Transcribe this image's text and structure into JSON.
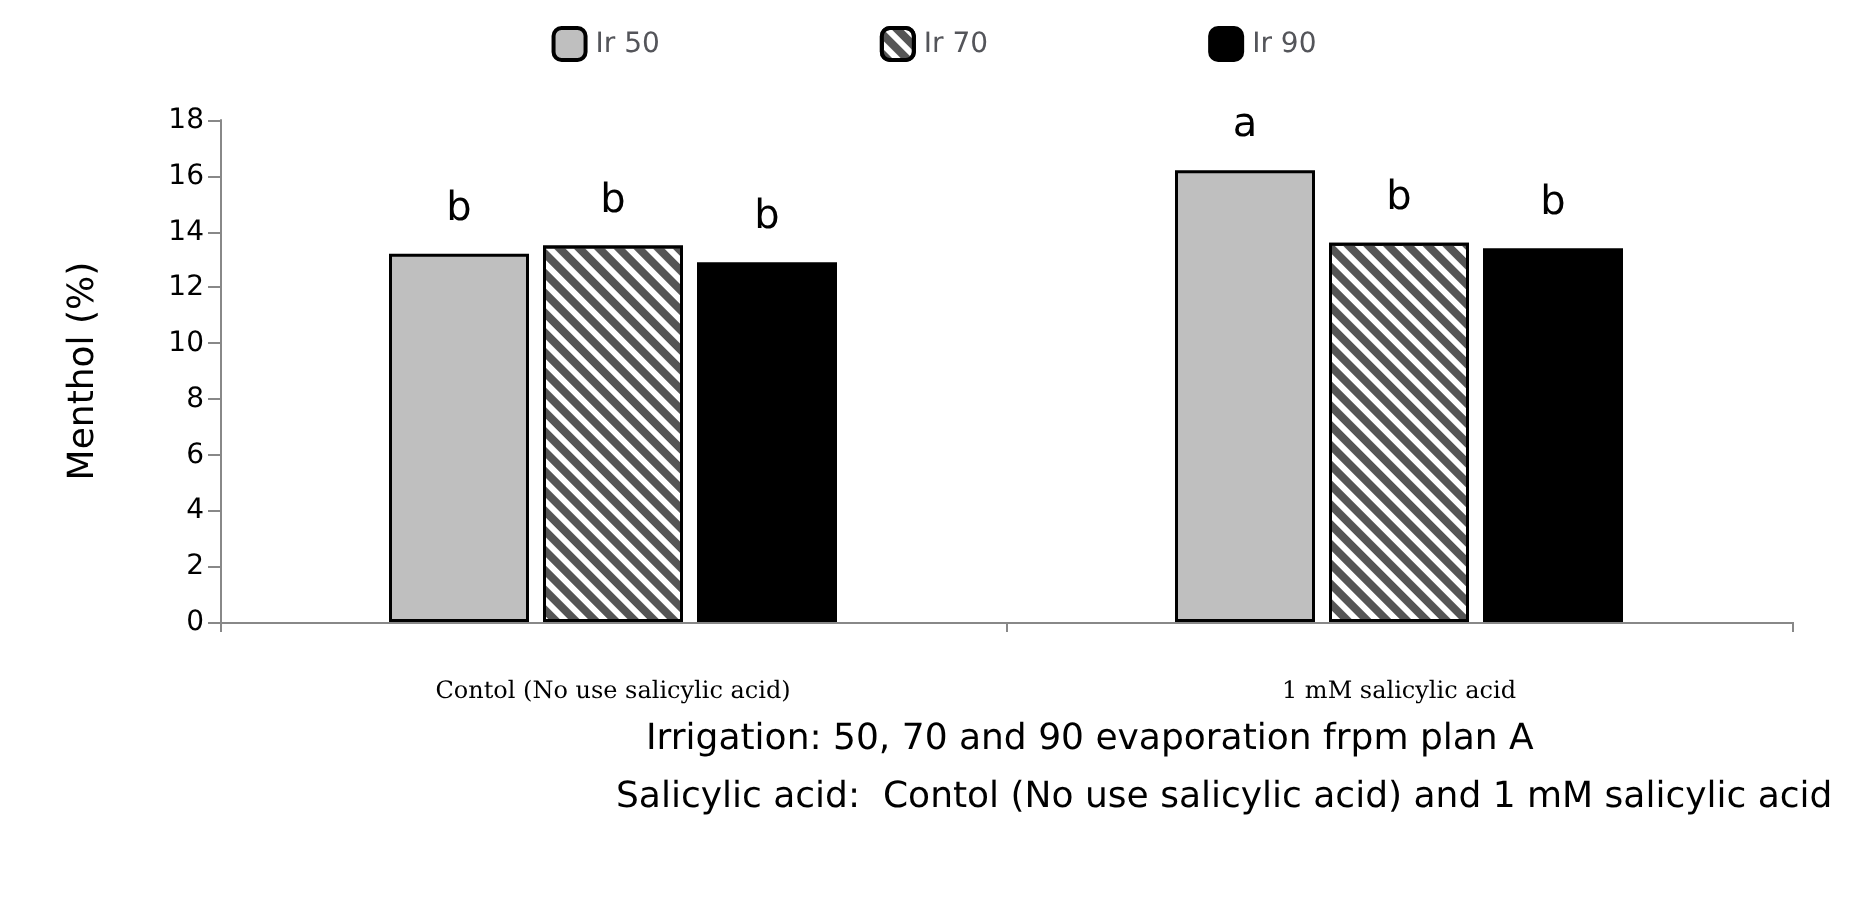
{
  "chart_data": {
    "type": "bar",
    "ylabel": "Menthol (%)",
    "categories": [
      "Contol (No use salicylic acid)",
      "1 mM salicylic acid"
    ],
    "series": [
      {
        "name": "Ir 50",
        "color": "#bfbfbf",
        "values": [
          13.2,
          16.2
        ],
        "value_labels": [
          "b",
          "a"
        ]
      },
      {
        "name": "Ir 70",
        "color": "#ffffff",
        "values": [
          13.5,
          13.6
        ],
        "value_labels": [
          "b",
          "b"
        ]
      },
      {
        "name": "Ir 90",
        "color": "#000000",
        "values": [
          12.9,
          13.4
        ],
        "value_labels": [
          "b",
          "b"
        ]
      }
    ],
    "ylim": [
      0,
      18
    ],
    "yticks": [
      0,
      2,
      4,
      6,
      8,
      10,
      12,
      14,
      16,
      18
    ],
    "grid": false,
    "legend": "top",
    "annotations": [
      "Irrigation: 50, 70 and 90 evaporation frpm plan A",
      "Salicylic acid:  Contol (No use salicylic acid) and 1 mM salicylic acid"
    ]
  }
}
